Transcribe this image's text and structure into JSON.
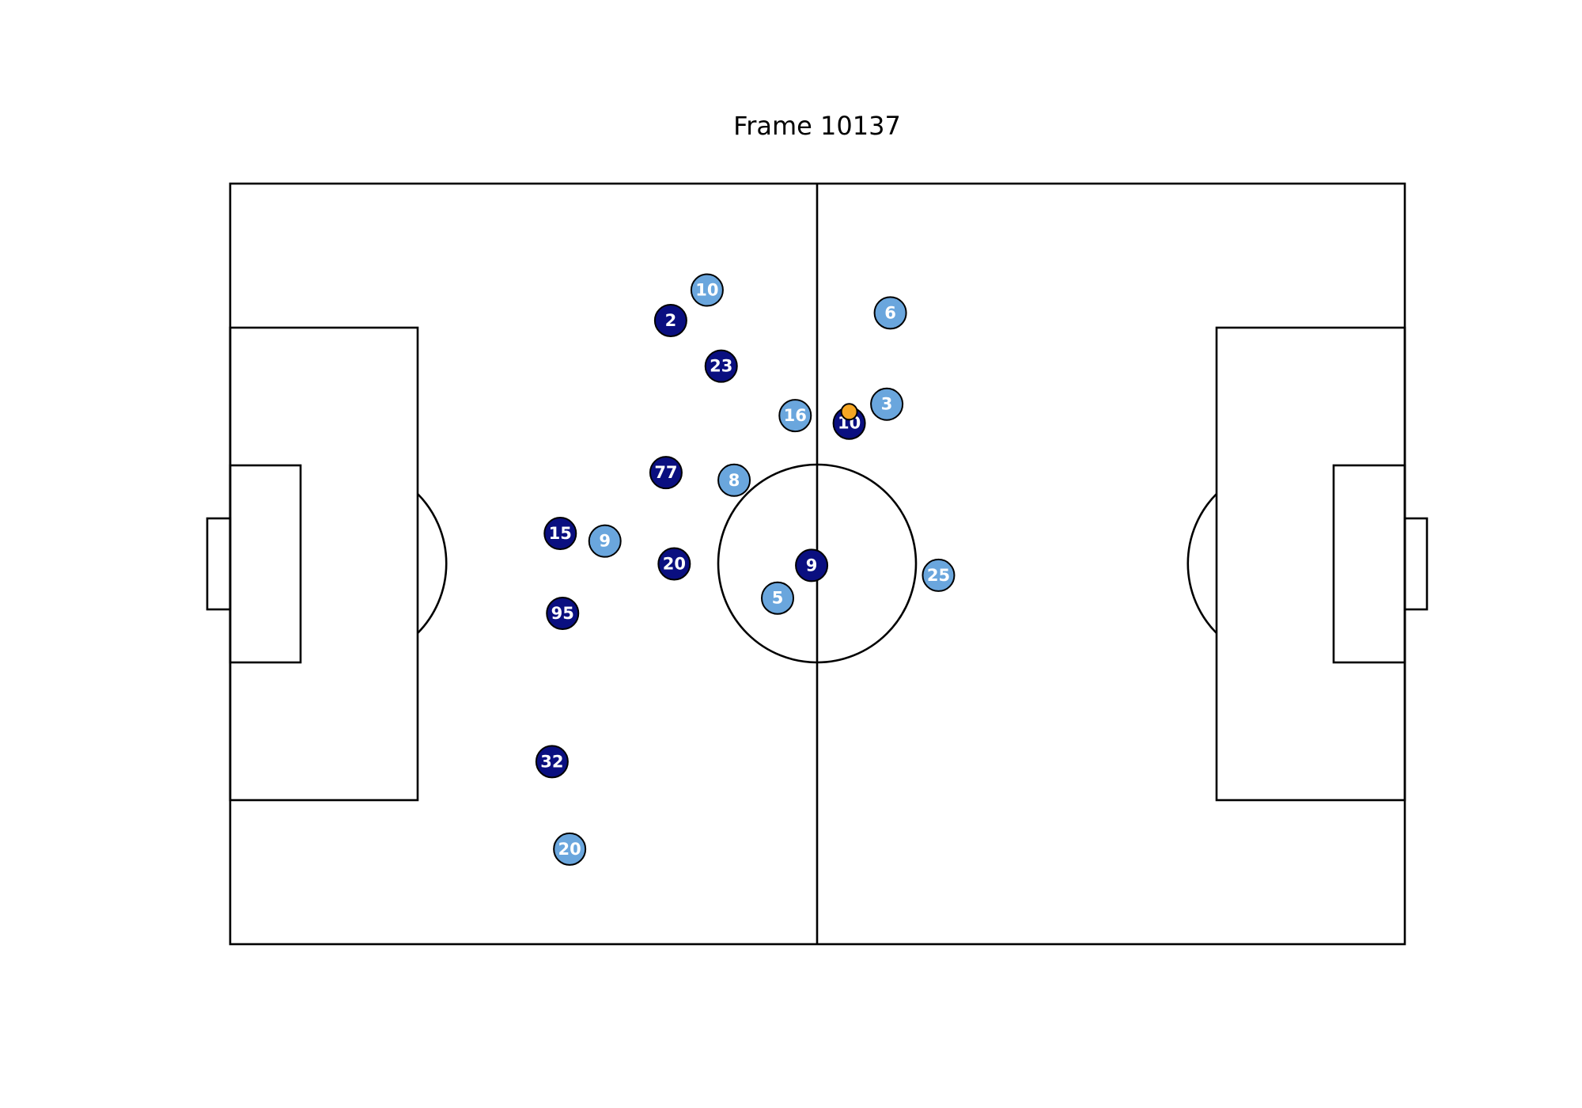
{
  "title": "Frame 10137",
  "colors": {
    "team_a": "#0a0f80",
    "team_b": "#6aa6dd",
    "ball": "#f5a623",
    "lines": "#000000"
  },
  "team_a_players": [
    {
      "number": "2",
      "x": 37.5,
      "y": 18.0
    },
    {
      "number": "23",
      "x": 41.8,
      "y": 24.0
    },
    {
      "number": "10",
      "x": 52.7,
      "y": 31.5
    },
    {
      "number": "77",
      "x": 37.1,
      "y": 38.0
    },
    {
      "number": "15",
      "x": 28.1,
      "y": 46.0
    },
    {
      "number": "20",
      "x": 37.8,
      "y": 50.0
    },
    {
      "number": "9",
      "x": 49.5,
      "y": 50.2
    },
    {
      "number": "95",
      "x": 28.3,
      "y": 56.5
    },
    {
      "number": "32",
      "x": 27.4,
      "y": 76.0
    }
  ],
  "team_b_players": [
    {
      "number": "10",
      "x": 40.6,
      "y": 14.0
    },
    {
      "number": "6",
      "x": 56.2,
      "y": 17.0
    },
    {
      "number": "3",
      "x": 55.9,
      "y": 29.0
    },
    {
      "number": "16",
      "x": 48.1,
      "y": 30.5
    },
    {
      "number": "8",
      "x": 42.9,
      "y": 39.0
    },
    {
      "number": "9",
      "x": 31.9,
      "y": 47.0
    },
    {
      "number": "25",
      "x": 60.3,
      "y": 51.5
    },
    {
      "number": "5",
      "x": 46.6,
      "y": 54.5
    },
    {
      "number": "20",
      "x": 28.9,
      "y": 87.5
    }
  ],
  "ball": {
    "x": 52.7,
    "y": 30.0
  }
}
